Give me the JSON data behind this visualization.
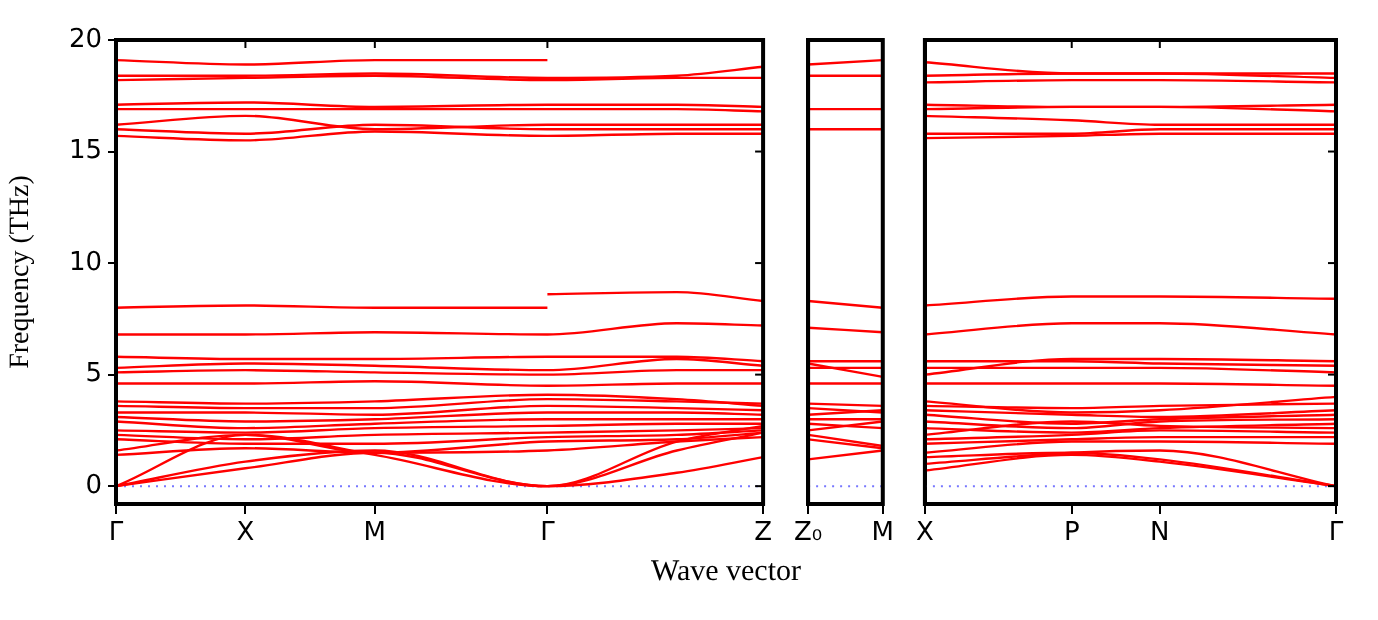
{
  "chart_data": [
    {
      "type": "line",
      "ylabel": "Frequency (THz)",
      "xlabel": "Wave vector",
      "marker": "none",
      "ylim": [
        -0.8,
        20
      ],
      "categories": [
        "Γ",
        null,
        null,
        "X",
        null,
        null,
        "M",
        null,
        null,
        null,
        "Γ",
        null,
        null,
        null,
        null,
        "Z"
      ],
      "yticks": [
        0,
        5,
        10,
        15,
        20
      ],
      "ref_lines": [
        {
          "axis": "y",
          "value": 0,
          "color": "#7777ff",
          "line_style": "dotted"
        }
      ],
      "series": [
        {
          "color": "#ff0000",
          "values": [
            19.1,
            null,
            null,
            18.9,
            null,
            null,
            19.1,
            null,
            null,
            null,
            19.1,
            null,
            null,
            null,
            null,
            null
          ]
        },
        {
          "color": "#ff0000",
          "values": [
            18.4,
            null,
            null,
            18.4,
            null,
            null,
            18.5,
            null,
            null,
            null,
            18.3,
            null,
            null,
            18.4,
            null,
            18.8
          ]
        },
        {
          "color": "#ff0000",
          "values": [
            18.2,
            null,
            null,
            18.3,
            null,
            null,
            18.4,
            null,
            null,
            null,
            18.2,
            null,
            null,
            18.3,
            null,
            18.3
          ]
        },
        {
          "color": "#ff0000",
          "values": [
            17.1,
            null,
            null,
            17.2,
            null,
            null,
            17.0,
            null,
            null,
            null,
            17.1,
            null,
            null,
            17.1,
            null,
            17.0
          ]
        },
        {
          "color": "#ff0000",
          "values": [
            16.9,
            null,
            null,
            16.9,
            null,
            null,
            16.9,
            null,
            null,
            null,
            16.9,
            null,
            null,
            16.9,
            null,
            16.8
          ]
        },
        {
          "color": "#ff0000",
          "values": [
            16.2,
            null,
            null,
            16.6,
            null,
            null,
            16.0,
            null,
            null,
            null,
            16.2,
            null,
            null,
            16.2,
            null,
            16.2
          ]
        },
        {
          "color": "#ff0000",
          "values": [
            16.0,
            null,
            null,
            15.8,
            null,
            null,
            16.2,
            null,
            null,
            null,
            16.0,
            null,
            null,
            16.0,
            null,
            16.0
          ]
        },
        {
          "color": "#ff0000",
          "values": [
            15.7,
            null,
            null,
            15.5,
            null,
            null,
            15.9,
            null,
            null,
            null,
            15.7,
            null,
            null,
            15.8,
            null,
            15.8
          ]
        },
        {
          "color": "#ff0000",
          "values": [
            8.0,
            null,
            null,
            8.1,
            null,
            null,
            8.0,
            null,
            null,
            null,
            8.0,
            null,
            null,
            null,
            null,
            null
          ]
        },
        {
          "color": "#ff0000",
          "values": [
            null,
            null,
            null,
            null,
            null,
            null,
            null,
            null,
            null,
            null,
            8.6,
            null,
            null,
            8.7,
            null,
            8.3
          ]
        },
        {
          "color": "#ff0000",
          "values": [
            6.8,
            null,
            null,
            6.8,
            null,
            null,
            6.9,
            null,
            null,
            null,
            6.8,
            null,
            null,
            7.3,
            null,
            7.2
          ]
        },
        {
          "color": "#ff0000",
          "values": [
            5.8,
            null,
            null,
            5.7,
            null,
            null,
            5.7,
            null,
            null,
            null,
            5.8,
            null,
            null,
            5.8,
            null,
            5.6
          ]
        },
        {
          "color": "#ff0000",
          "values": [
            5.3,
            null,
            null,
            5.5,
            null,
            null,
            5.4,
            null,
            null,
            null,
            5.2,
            null,
            null,
            5.7,
            null,
            5.4
          ]
        },
        {
          "color": "#ff0000",
          "values": [
            5.1,
            null,
            null,
            5.2,
            null,
            null,
            5.1,
            null,
            null,
            null,
            5.0,
            null,
            null,
            5.2,
            null,
            5.2
          ]
        },
        {
          "color": "#ff0000",
          "values": [
            4.6,
            null,
            null,
            4.6,
            null,
            null,
            4.7,
            null,
            null,
            null,
            4.5,
            null,
            null,
            4.6,
            null,
            4.6
          ]
        },
        {
          "color": "#ff0000",
          "values": [
            3.8,
            null,
            null,
            3.7,
            null,
            null,
            3.8,
            null,
            null,
            null,
            4.1,
            null,
            null,
            3.9,
            null,
            3.6
          ]
        },
        {
          "color": "#ff0000",
          "values": [
            3.6,
            null,
            null,
            3.5,
            null,
            null,
            3.5,
            null,
            null,
            null,
            3.9,
            null,
            null,
            3.8,
            null,
            3.7
          ]
        },
        {
          "color": "#ff0000",
          "values": [
            3.3,
            null,
            null,
            3.3,
            null,
            null,
            3.2,
            null,
            null,
            null,
            3.6,
            null,
            null,
            3.5,
            null,
            3.4
          ]
        },
        {
          "color": "#ff0000",
          "values": [
            3.1,
            null,
            null,
            2.9,
            null,
            null,
            3.0,
            null,
            null,
            null,
            3.3,
            null,
            null,
            3.3,
            null,
            3.2
          ]
        },
        {
          "color": "#ff0000",
          "values": [
            2.9,
            null,
            null,
            2.6,
            null,
            null,
            2.8,
            null,
            null,
            null,
            3.0,
            null,
            null,
            3.0,
            null,
            3.0
          ]
        },
        {
          "color": "#ff0000",
          "values": [
            2.5,
            null,
            null,
            2.4,
            null,
            null,
            2.6,
            null,
            null,
            null,
            2.7,
            null,
            null,
            2.8,
            null,
            2.8
          ]
        },
        {
          "color": "#ff0000",
          "values": [
            2.3,
            null,
            null,
            2.1,
            null,
            null,
            2.3,
            null,
            null,
            null,
            2.4,
            null,
            null,
            2.5,
            null,
            2.6
          ]
        },
        {
          "color": "#ff0000",
          "values": [
            2.1,
            null,
            null,
            1.9,
            null,
            null,
            1.9,
            null,
            null,
            null,
            2.2,
            null,
            null,
            2.3,
            null,
            2.5
          ]
        },
        {
          "color": "#ff0000",
          "values": [
            1.6,
            null,
            null,
            2.3,
            null,
            null,
            1.5,
            null,
            null,
            null,
            2.0,
            null,
            null,
            2.1,
            null,
            2.4
          ]
        },
        {
          "color": "#ff0000",
          "values": [
            1.4,
            null,
            null,
            1.7,
            null,
            null,
            1.5,
            null,
            null,
            null,
            1.6,
            null,
            null,
            2.0,
            null,
            2.2
          ]
        },
        {
          "color": "#ff0000",
          "values": [
            0,
            null,
            null,
            0.8,
            null,
            null,
            1.5,
            null,
            null,
            null,
            0,
            null,
            null,
            0.6,
            null,
            1.3
          ]
        },
        {
          "color": "#ff0000",
          "values": [
            0,
            null,
            null,
            1.1,
            null,
            null,
            1.6,
            null,
            null,
            null,
            0,
            null,
            null,
            1.6,
            null,
            2.4
          ]
        },
        {
          "color": "#ff0000",
          "values": [
            0,
            null,
            null,
            2.3,
            null,
            null,
            1.4,
            null,
            null,
            null,
            0,
            null,
            null,
            2.0,
            null,
            2.7
          ]
        }
      ]
    },
    {
      "type": "line",
      "marker": "none",
      "tick_labels": "x",
      "ylim": [
        -0.8,
        20
      ],
      "categories": [
        "Z₀",
        "M"
      ],
      "yticks": [
        0,
        5,
        10,
        15,
        20
      ],
      "ref_lines": [
        {
          "axis": "y",
          "value": 0,
          "color": "#7777ff",
          "line_style": "dotted"
        }
      ],
      "series": [
        {
          "color": "#ff0000",
          "values": [
            18.9,
            19.1
          ]
        },
        {
          "color": "#ff0000",
          "values": [
            18.4,
            18.4
          ]
        },
        {
          "color": "#ff0000",
          "values": [
            16.9,
            16.9
          ]
        },
        {
          "color": "#ff0000",
          "values": [
            16.0,
            16.0
          ]
        },
        {
          "color": "#ff0000",
          "values": [
            8.3,
            8.0
          ]
        },
        {
          "color": "#ff0000",
          "values": [
            7.1,
            6.9
          ]
        },
        {
          "color": "#ff0000",
          "values": [
            5.6,
            5.6
          ]
        },
        {
          "color": "#ff0000",
          "values": [
            5.5,
            4.9
          ]
        },
        {
          "color": "#ff0000",
          "values": [
            5.3,
            5.3
          ]
        },
        {
          "color": "#ff0000",
          "values": [
            4.6,
            4.6
          ]
        },
        {
          "color": "#ff0000",
          "values": [
            3.7,
            3.6
          ]
        },
        {
          "color": "#ff0000",
          "values": [
            3.5,
            3.3
          ]
        },
        {
          "color": "#ff0000",
          "values": [
            3.2,
            3.4
          ]
        },
        {
          "color": "#ff0000",
          "values": [
            3.0,
            3.0
          ]
        },
        {
          "color": "#ff0000",
          "values": [
            2.8,
            2.6
          ]
        },
        {
          "color": "#ff0000",
          "values": [
            2.5,
            2.9
          ]
        },
        {
          "color": "#ff0000",
          "values": [
            2.3,
            1.8
          ]
        },
        {
          "color": "#ff0000",
          "values": [
            2.1,
            1.7
          ]
        },
        {
          "color": "#ff0000",
          "values": [
            1.2,
            1.6
          ]
        }
      ]
    },
    {
      "type": "line",
      "marker": "none",
      "tick_labels": "x",
      "ylim": [
        -0.8,
        20
      ],
      "categories": [
        "X",
        null,
        null,
        null,
        null,
        "P",
        null,
        null,
        "N",
        null,
        null,
        null,
        null,
        null,
        "Γ"
      ],
      "yticks": [
        0,
        5,
        10,
        15,
        20
      ],
      "ref_lines": [
        {
          "axis": "y",
          "value": 0,
          "color": "#7777ff",
          "line_style": "dotted"
        }
      ],
      "series": [
        {
          "color": "#ff0000",
          "values": [
            19.0,
            null,
            null,
            null,
            null,
            18.5,
            null,
            null,
            18.5,
            null,
            null,
            null,
            null,
            null,
            18.5
          ]
        },
        {
          "color": "#ff0000",
          "values": [
            18.4,
            null,
            null,
            null,
            null,
            18.5,
            null,
            null,
            18.5,
            null,
            null,
            null,
            null,
            null,
            18.3
          ]
        },
        {
          "color": "#ff0000",
          "values": [
            18.1,
            null,
            null,
            null,
            null,
            18.2,
            null,
            null,
            18.2,
            null,
            null,
            null,
            null,
            null,
            18.1
          ]
        },
        {
          "color": "#ff0000",
          "values": [
            17.1,
            null,
            null,
            null,
            null,
            17.0,
            null,
            null,
            17.0,
            null,
            null,
            null,
            null,
            null,
            17.1
          ]
        },
        {
          "color": "#ff0000",
          "values": [
            16.9,
            null,
            null,
            null,
            null,
            17.0,
            null,
            null,
            17.0,
            null,
            null,
            null,
            null,
            null,
            16.8
          ]
        },
        {
          "color": "#ff0000",
          "values": [
            16.6,
            null,
            null,
            null,
            null,
            16.4,
            null,
            null,
            16.2,
            null,
            null,
            null,
            null,
            null,
            16.2
          ]
        },
        {
          "color": "#ff0000",
          "values": [
            15.8,
            null,
            null,
            null,
            null,
            15.8,
            null,
            null,
            16.0,
            null,
            null,
            null,
            null,
            null,
            16.0
          ]
        },
        {
          "color": "#ff0000",
          "values": [
            15.6,
            null,
            null,
            null,
            null,
            15.7,
            null,
            null,
            15.8,
            null,
            null,
            null,
            null,
            null,
            15.8
          ]
        },
        {
          "color": "#ff0000",
          "values": [
            8.1,
            null,
            null,
            null,
            null,
            8.5,
            null,
            null,
            8.5,
            null,
            null,
            null,
            null,
            null,
            8.4
          ]
        },
        {
          "color": "#ff0000",
          "values": [
            6.8,
            null,
            null,
            null,
            null,
            7.3,
            null,
            null,
            7.3,
            null,
            null,
            null,
            null,
            null,
            6.8
          ]
        },
        {
          "color": "#ff0000",
          "values": [
            5.0,
            null,
            null,
            null,
            null,
            5.7,
            null,
            null,
            5.7,
            null,
            null,
            null,
            null,
            null,
            5.6
          ]
        },
        {
          "color": "#ff0000",
          "values": [
            5.6,
            null,
            null,
            null,
            null,
            5.6,
            null,
            null,
            5.5,
            null,
            null,
            null,
            null,
            null,
            5.4
          ]
        },
        {
          "color": "#ff0000",
          "values": [
            5.3,
            null,
            null,
            null,
            null,
            5.3,
            null,
            null,
            5.3,
            null,
            null,
            null,
            null,
            null,
            5.1
          ]
        },
        {
          "color": "#ff0000",
          "values": [
            4.6,
            null,
            null,
            null,
            null,
            4.6,
            null,
            null,
            4.6,
            null,
            null,
            null,
            null,
            null,
            4.5
          ]
        },
        {
          "color": "#ff0000",
          "values": [
            3.8,
            null,
            null,
            null,
            null,
            3.3,
            null,
            null,
            3.4,
            null,
            null,
            null,
            null,
            null,
            4.0
          ]
        },
        {
          "color": "#ff0000",
          "values": [
            3.6,
            null,
            null,
            null,
            null,
            3.5,
            null,
            null,
            3.6,
            null,
            null,
            null,
            null,
            null,
            3.7
          ]
        },
        {
          "color": "#ff0000",
          "values": [
            3.4,
            null,
            null,
            null,
            null,
            3.2,
            null,
            null,
            3.1,
            null,
            null,
            null,
            null,
            null,
            3.4
          ]
        },
        {
          "color": "#ff0000",
          "values": [
            3.2,
            null,
            null,
            null,
            null,
            2.8,
            null,
            null,
            3.0,
            null,
            null,
            null,
            null,
            null,
            3.2
          ]
        },
        {
          "color": "#ff0000",
          "values": [
            2.9,
            null,
            null,
            null,
            null,
            2.6,
            null,
            null,
            2.9,
            null,
            null,
            null,
            null,
            null,
            3.0
          ]
        },
        {
          "color": "#ff0000",
          "values": [
            2.6,
            null,
            null,
            null,
            null,
            2.4,
            null,
            null,
            2.6,
            null,
            null,
            null,
            null,
            null,
            2.8
          ]
        },
        {
          "color": "#ff0000",
          "values": [
            2.3,
            null,
            null,
            null,
            null,
            2.9,
            null,
            null,
            2.7,
            null,
            null,
            null,
            null,
            null,
            2.6
          ]
        },
        {
          "color": "#ff0000",
          "values": [
            2.1,
            null,
            null,
            null,
            null,
            2.3,
            null,
            null,
            2.5,
            null,
            null,
            null,
            null,
            null,
            2.4
          ]
        },
        {
          "color": "#ff0000",
          "values": [
            1.9,
            null,
            null,
            null,
            null,
            2.1,
            null,
            null,
            2.2,
            null,
            null,
            null,
            null,
            null,
            2.2
          ]
        },
        {
          "color": "#ff0000",
          "values": [
            1.5,
            null,
            null,
            null,
            null,
            2.0,
            null,
            null,
            2.0,
            null,
            null,
            null,
            null,
            null,
            1.9
          ]
        },
        {
          "color": "#ff0000",
          "values": [
            1.3,
            null,
            null,
            null,
            null,
            1.5,
            null,
            null,
            1.2,
            null,
            null,
            null,
            null,
            null,
            0
          ]
        },
        {
          "color": "#ff0000",
          "values": [
            0.7,
            null,
            null,
            null,
            null,
            1.4,
            null,
            null,
            1.1,
            null,
            null,
            null,
            null,
            null,
            0
          ]
        },
        {
          "color": "#ff0000",
          "values": [
            1.0,
            null,
            null,
            null,
            null,
            1.5,
            null,
            null,
            1.6,
            null,
            null,
            null,
            null,
            null,
            0
          ]
        }
      ]
    }
  ]
}
